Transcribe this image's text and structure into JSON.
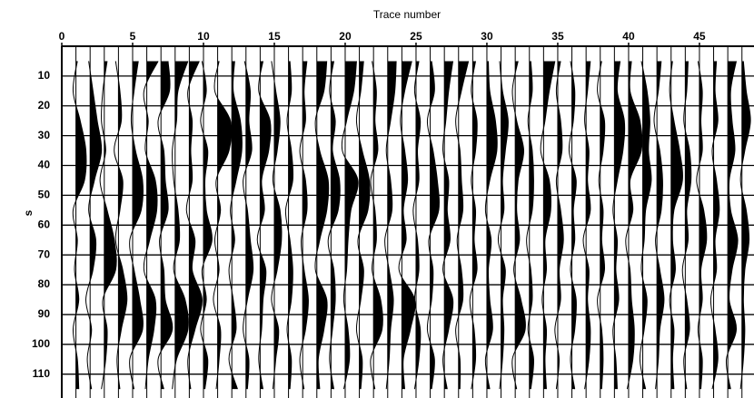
{
  "chart_data": {
    "type": "wiggle",
    "title": "Trace number",
    "y_label": "s",
    "xlim": [
      0,
      48.85
    ],
    "xticks": [
      0,
      5,
      10,
      15,
      20,
      25,
      30,
      35,
      40,
      45
    ],
    "ylim": [
      0,
      118
    ],
    "yticks": [
      10,
      20,
      30,
      40,
      50,
      60,
      70,
      80,
      90,
      100,
      110
    ],
    "grid": true,
    "color": "#000000",
    "fill_positive": true,
    "samples": [
      5,
      15,
      25,
      35,
      45,
      55,
      65,
      75,
      85,
      95,
      105,
      115
    ],
    "x": [
      1,
      2,
      3,
      4,
      5,
      6,
      7,
      8,
      9,
      10,
      11,
      12,
      13,
      14,
      15,
      16,
      17,
      18,
      19,
      20,
      21,
      22,
      23,
      24,
      25,
      26,
      27,
      28,
      29,
      30,
      31,
      32,
      33,
      34,
      35,
      36,
      37,
      38,
      39,
      40,
      41,
      42,
      43,
      44,
      45,
      46,
      47,
      48
    ],
    "traces": [
      [
        0.1,
        -0.2,
        0.3,
        0.7,
        0.6,
        -0.2,
        0.1,
        -0.1,
        0.2,
        -0.2,
        0.1,
        0.2
      ],
      [
        -0.1,
        0.2,
        0.5,
        0.8,
        0.3,
        -0.1,
        0.4,
        0.2,
        -0.3,
        0.1,
        -0.2,
        0.1
      ],
      [
        0.2,
        -0.1,
        -0.2,
        0.1,
        -0.3,
        0.2,
        0.7,
        0.8,
        -0.1,
        0.2,
        0.1,
        -0.2
      ],
      [
        -0.2,
        0.1,
        0.2,
        -0.3,
        0.3,
        0.1,
        -0.2,
        0.3,
        0.6,
        0.2,
        -0.1,
        0.1
      ],
      [
        0.4,
        0.1,
        -0.1,
        0.2,
        0.7,
        0.6,
        -0.2,
        0.1,
        0.5,
        0.7,
        -0.2,
        0.1
      ],
      [
        0.8,
        -0.2,
        0.1,
        -0.1,
        0.6,
        0.7,
        0.2,
        -0.2,
        0.6,
        0.5,
        0.1,
        -0.1
      ],
      [
        0.5,
        0.6,
        -0.2,
        0.2,
        0.3,
        0.5,
        -0.1,
        0.2,
        0.3,
        0.8,
        -0.2,
        0.2
      ],
      [
        0.9,
        0.2,
        0.1,
        -0.2,
        -0.1,
        0.2,
        0.3,
        -0.1,
        0.7,
        0.9,
        0.1,
        -0.2
      ],
      [
        0.7,
        -0.1,
        0.2,
        0.1,
        0.2,
        -0.2,
        0.4,
        0.2,
        0.9,
        0.4,
        -0.1,
        0.1
      ],
      [
        -0.1,
        0.2,
        -0.2,
        0.3,
        0.1,
        0.2,
        0.6,
        -0.1,
        0.2,
        -0.2,
        0.3,
        0.1
      ],
      [
        0.1,
        -0.2,
        0.9,
        0.8,
        -0.1,
        0.2,
        -0.2,
        0.1,
        -0.3,
        0.2,
        0.1,
        -0.1
      ],
      [
        0.2,
        0.1,
        0.6,
        0.7,
        0.3,
        -0.1,
        0.2,
        -0.2,
        0.1,
        0.3,
        -0.2,
        0.4
      ],
      [
        -0.1,
        0.3,
        0.2,
        0.4,
        -0.2,
        0.1,
        0.3,
        0.5,
        0.1,
        -0.2,
        0.2,
        0.1
      ],
      [
        0.2,
        -0.1,
        0.7,
        0.6,
        0.1,
        0.3,
        -0.2,
        0.4,
        0.2,
        0.1,
        -0.1,
        0.2
      ],
      [
        -0.2,
        0.1,
        0.4,
        0.2,
        -0.1,
        0.4,
        0.5,
        0.2,
        -0.2,
        0.3,
        0.1,
        -0.1
      ],
      [
        0.1,
        0.2,
        -0.1,
        0.2,
        0.3,
        -0.2,
        0.1,
        0.3,
        0.2,
        -0.1,
        0.2,
        0.1
      ],
      [
        0.3,
        0.1,
        0.2,
        -0.2,
        0.2,
        0.3,
        -0.1,
        0.1,
        0.4,
        0.2,
        -0.2,
        0.1
      ],
      [
        0.7,
        0.5,
        -0.1,
        0.2,
        0.8,
        0.7,
        0.2,
        -0.1,
        0.7,
        0.5,
        0.1,
        0.2
      ],
      [
        0.2,
        -0.1,
        0.3,
        0.1,
        0.6,
        0.5,
        -0.2,
        0.2,
        0.3,
        0.1,
        -0.1,
        0.2
      ],
      [
        0.8,
        0.6,
        0.1,
        -0.2,
        0.9,
        0.4,
        0.2,
        0.1,
        -0.1,
        0.2,
        0.3,
        -0.1
      ],
      [
        0.3,
        0.1,
        -0.2,
        0.2,
        0.7,
        0.6,
        -0.1,
        0.3,
        0.1,
        -0.2,
        0.2,
        0.1
      ],
      [
        -0.1,
        0.2,
        0.1,
        0.3,
        -0.2,
        0.1,
        0.2,
        -0.1,
        0.5,
        0.6,
        -0.2,
        0.1
      ],
      [
        0.6,
        0.5,
        0.2,
        -0.1,
        0.2,
        0.3,
        -0.2,
        0.1,
        0.4,
        0.2,
        0.1,
        -0.1
      ],
      [
        0.7,
        0.2,
        -0.1,
        0.2,
        0.4,
        0.1,
        0.3,
        -0.2,
        0.9,
        0.6,
        0.1,
        0.2
      ],
      [
        0.2,
        -0.1,
        0.3,
        0.1,
        0.2,
        -0.2,
        0.1,
        0.2,
        -0.1,
        0.3,
        0.2,
        -0.1
      ],
      [
        0.1,
        0.3,
        -0.2,
        0.2,
        0.5,
        0.6,
        -0.1,
        0.2,
        0.1,
        -0.2,
        0.3,
        0.1
      ],
      [
        0.6,
        0.3,
        0.1,
        -0.1,
        0.3,
        0.2,
        0.4,
        -0.1,
        0.6,
        0.3,
        -0.1,
        0.2
      ],
      [
        0.7,
        0.2,
        -0.2,
        0.1,
        0.2,
        0.3,
        -0.1,
        0.2,
        0.3,
        -0.2,
        0.1,
        0.1
      ],
      [
        0.2,
        -0.1,
        0.3,
        0.2,
        -0.1,
        0.2,
        0.1,
        0.3,
        -0.2,
        0.1,
        0.2,
        -0.1
      ],
      [
        0.1,
        0.2,
        0.6,
        0.7,
        0.2,
        -0.1,
        0.3,
        0.1,
        0.2,
        0.4,
        -0.1,
        0.2
      ],
      [
        -0.1,
        0.1,
        0.5,
        0.3,
        0.1,
        0.2,
        -0.2,
        0.3,
        0.1,
        0.2,
        0.1,
        -0.1
      ],
      [
        0.2,
        -0.2,
        0.1,
        0.6,
        0.2,
        0.1,
        0.3,
        -0.1,
        0.4,
        0.7,
        -0.2,
        0.1
      ],
      [
        0.1,
        0.2,
        -0.1,
        0.2,
        0.3,
        0.2,
        -0.2,
        0.1,
        0.2,
        -0.1,
        0.3,
        0.1
      ],
      [
        0.8,
        0.4,
        0.1,
        -0.2,
        0.4,
        0.5,
        0.1,
        0.2,
        -0.1,
        0.2,
        0.1,
        0.2
      ],
      [
        0.2,
        -0.1,
        0.2,
        0.3,
        -0.1,
        0.2,
        0.4,
        0.1,
        0.2,
        -0.2,
        0.1,
        -0.1
      ],
      [
        -0.1,
        0.2,
        0.1,
        -0.2,
        0.3,
        0.1,
        0.2,
        -0.1,
        0.3,
        0.2,
        -0.1,
        0.2
      ],
      [
        0.3,
        0.1,
        -0.1,
        0.2,
        0.1,
        0.3,
        -0.2,
        0.2,
        0.1,
        0.3,
        0.2,
        -0.1
      ],
      [
        0.1,
        -0.2,
        0.3,
        0.2,
        -0.1,
        0.2,
        0.1,
        0.3,
        -0.2,
        0.1,
        0.2,
        0.1
      ],
      [
        0.4,
        0.2,
        0.7,
        0.6,
        0.2,
        -0.1,
        0.2,
        0.1,
        0.3,
        -0.1,
        0.1,
        0.2
      ],
      [
        0.2,
        0.1,
        0.8,
        0.9,
        0.1,
        0.3,
        -0.2,
        0.1,
        0.2,
        0.4,
        0.3,
        -0.1
      ],
      [
        -0.1,
        0.3,
        0.5,
        0.4,
        0.6,
        0.2,
        0.1,
        -0.1,
        0.3,
        0.1,
        -0.2,
        0.2
      ],
      [
        0.3,
        0.1,
        -0.2,
        0.2,
        0.4,
        0.3,
        -0.1,
        0.2,
        0.5,
        0.2,
        0.1,
        -0.1
      ],
      [
        0.1,
        -0.1,
        0.2,
        0.6,
        0.8,
        0.2,
        0.1,
        0.3,
        -0.1,
        0.2,
        0.1,
        0.2
      ],
      [
        0.2,
        0.1,
        -0.1,
        0.3,
        0.4,
        0.1,
        0.2,
        -0.2,
        0.1,
        0.3,
        -0.1,
        0.1
      ],
      [
        -0.1,
        0.2,
        0.1,
        0.2,
        -0.2,
        0.3,
        0.5,
        0.1,
        0.2,
        -0.1,
        0.2,
        0.1
      ],
      [
        0.2,
        0.1,
        0.3,
        -0.1,
        0.2,
        0.4,
        0.1,
        0.2,
        -0.2,
        0.1,
        0.3,
        -0.1
      ],
      [
        0.6,
        0.2,
        0.3,
        0.5,
        0.1,
        0.2,
        0.7,
        0.3,
        0.1,
        0.6,
        -0.1,
        0.2
      ],
      [
        0.1,
        0.3,
        0.6,
        0.2,
        -0.1,
        0.3,
        0.5,
        0.2,
        0.1,
        0.2,
        0.1,
        -0.1
      ]
    ]
  }
}
